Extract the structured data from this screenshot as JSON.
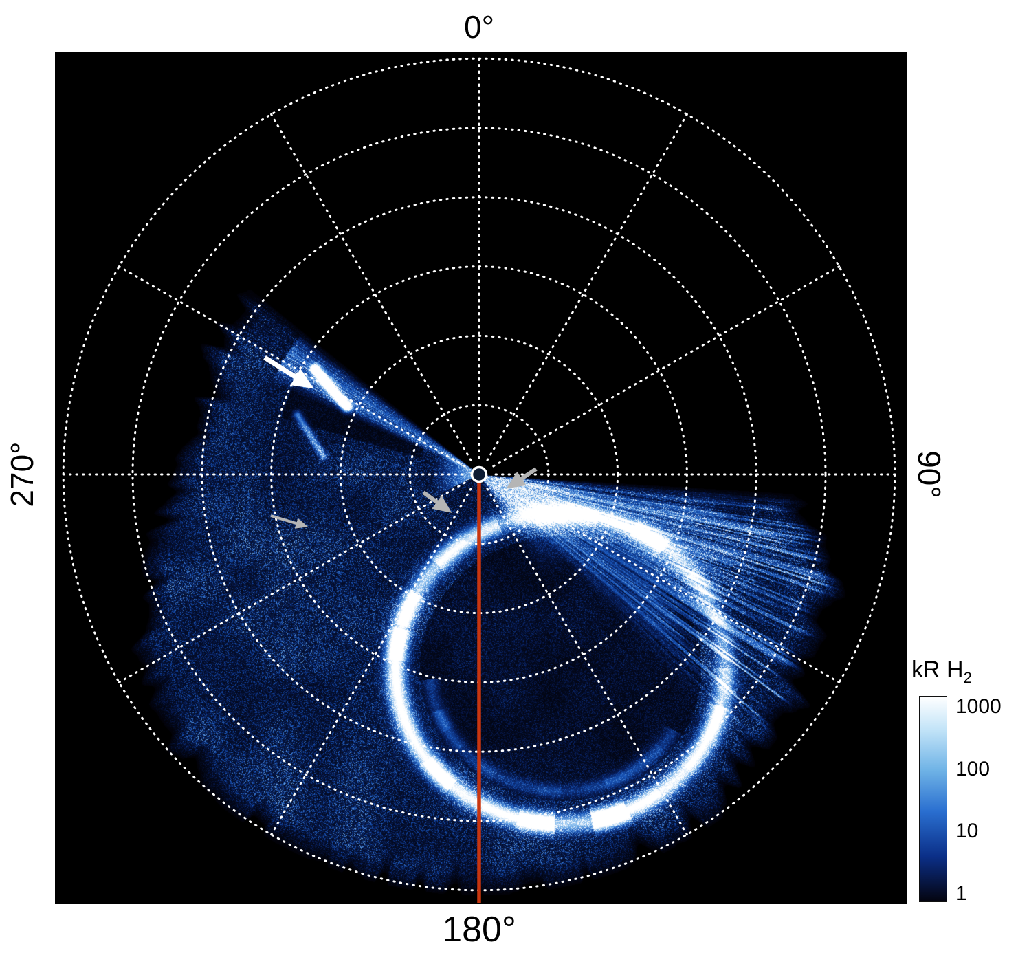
{
  "labels": {
    "top": "0°",
    "right": "90°",
    "bottom": "180°",
    "left": "270°"
  },
  "colorbar": {
    "title": "kR H",
    "title_sub": "2",
    "ticks": [
      "1000",
      "100",
      "10",
      "1"
    ],
    "scale": "log",
    "gradient": [
      "#ffffff 0%",
      "#c3e4f8 16%",
      "#6fb3e6 36%",
      "#2a6fd0 56%",
      "#0b2f88 78%",
      "#04040f 100%"
    ]
  },
  "colors": {
    "page_background": "#ffffff",
    "plot_background": "#000000",
    "grid": "#ffffff",
    "meridian_line": "#c8350f",
    "white_arrow": "#ffffff",
    "gray_arrow": "#b5b5b5",
    "label_text": "#000000",
    "colormap": [
      "#020208",
      "#081e5c",
      "#1856bc",
      "#76b2ea",
      "#ffffff"
    ]
  },
  "chart_data": {
    "type": "heatmap",
    "projection": "polar",
    "title": "",
    "angular_ticks_deg": [
      0,
      90,
      180,
      270
    ],
    "angular_tick_labels": [
      "0°",
      "90°",
      "180°",
      "270°"
    ],
    "radial_gridlines": 6,
    "spoke_step_deg": 30,
    "colorbar": {
      "label": "kR H2",
      "scale": "log",
      "min": 1,
      "max": 1000,
      "tick_values": [
        1000,
        100,
        10,
        1
      ]
    },
    "data_coverage_deg": [
      94,
      309
    ],
    "features": [
      {
        "name": "main-auroral-oval",
        "description": "bright patchy oval of emission offset toward 180°"
      },
      {
        "name": "secondary-inner-arc",
        "description": "fainter arc inside the main oval on its 180°-270° side"
      },
      {
        "name": "bright-arc-spot",
        "description": "small intense arc near 300° azimuth marked by a white arrow"
      },
      {
        "name": "bright-streaked-wedge",
        "description": "radially streaked bright emission between ~95° and ~135° azimuth"
      },
      {
        "name": "central-meridian-line",
        "description": "red line drawn from the pole along the 180° meridian"
      },
      {
        "name": "pole-marker",
        "description": "small white circle at the projection pole"
      },
      {
        "name": "gray-arrow-annotations",
        "description": "three gray arrows pointing at diffuse features near the pole and at ~280° azimuth"
      }
    ]
  }
}
